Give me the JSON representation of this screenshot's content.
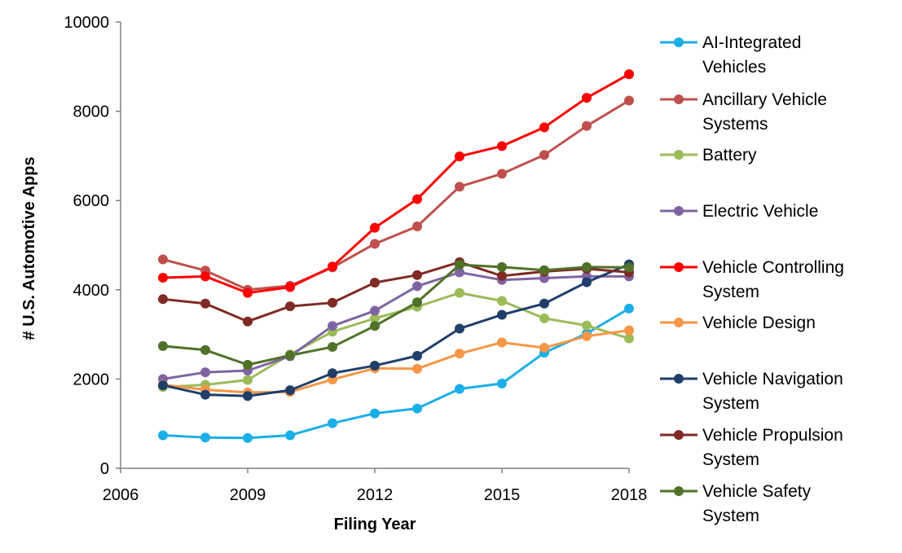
{
  "chart_data": {
    "type": "line",
    "title": "",
    "xlabel": "Filing Year",
    "ylabel": "# U.S. Automotive Apps",
    "xlim": [
      2006,
      2018
    ],
    "ylim": [
      0,
      10000
    ],
    "xticks": [
      "2006",
      "2009",
      "2012",
      "2015",
      "2018"
    ],
    "yticks": [
      "0",
      "2000",
      "4000",
      "6000",
      "8000",
      "10000"
    ],
    "grid": false,
    "legend_position": "right",
    "x": [
      2007,
      2008,
      2009,
      2010,
      2011,
      2012,
      2013,
      2014,
      2015,
      2016,
      2017,
      2018
    ],
    "series": [
      {
        "name": "AI-Integrated Vehicles",
        "legend_lines": [
          "AI-Integrated",
          "Vehicles"
        ],
        "color": "#1AAFE6",
        "values": [
          740,
          690,
          680,
          740,
          1010,
          1230,
          1340,
          1780,
          1900,
          2590,
          3020,
          3580
        ]
      },
      {
        "name": "Ancillary Vehicle Systems",
        "legend_lines": [
          "Ancillary Vehicle",
          "Systems"
        ],
        "color": "#C0504D",
        "values": [
          4680,
          4430,
          4000,
          4090,
          4500,
          5030,
          5420,
          6310,
          6600,
          7020,
          7670,
          8240
        ]
      },
      {
        "name": "Battery",
        "legend_lines": [
          "Battery"
        ],
        "color": "#9BBB59",
        "values": [
          1820,
          1870,
          1980,
          2550,
          3060,
          3360,
          3620,
          3930,
          3750,
          3360,
          3200,
          2910
        ]
      },
      {
        "name": "Electric Vehicle",
        "legend_lines": [
          "Electric Vehicle"
        ],
        "color": "#8064A2",
        "values": [
          2000,
          2150,
          2190,
          2510,
          3190,
          3530,
          4080,
          4390,
          4220,
          4260,
          4300,
          4300
        ]
      },
      {
        "name": "Vehicle Controlling System",
        "legend_lines": [
          "Vehicle Controlling",
          "System"
        ],
        "color": "#FF0000",
        "values": [
          4270,
          4300,
          3930,
          4060,
          4520,
          5390,
          6030,
          6990,
          7220,
          7640,
          8300,
          8830
        ]
      },
      {
        "name": "Vehicle Design",
        "legend_lines": [
          "Vehicle Design"
        ],
        "color": "#F79646",
        "values": [
          1870,
          1760,
          1700,
          1710,
          1990,
          2240,
          2230,
          2570,
          2820,
          2700,
          2960,
          3090
        ]
      },
      {
        "name": "Vehicle Navigation System",
        "legend_lines": [
          "Vehicle Navigation",
          "System"
        ],
        "color": "#1F3F6A",
        "values": [
          1860,
          1650,
          1620,
          1750,
          2130,
          2300,
          2520,
          3130,
          3440,
          3690,
          4170,
          4570
        ]
      },
      {
        "name": "Vehicle Propulsion System",
        "legend_lines": [
          "Vehicle Propulsion",
          "System"
        ],
        "color": "#7F2A24",
        "values": [
          3790,
          3690,
          3290,
          3630,
          3710,
          4160,
          4330,
          4620,
          4310,
          4410,
          4470,
          4390
        ]
      },
      {
        "name": "Vehicle Safety System",
        "legend_lines": [
          "Vehicle Safety",
          "System"
        ],
        "color": "#4F7228",
        "values": [
          2740,
          2650,
          2320,
          2530,
          2720,
          3190,
          3720,
          4560,
          4510,
          4440,
          4510,
          4500
        ]
      }
    ]
  }
}
